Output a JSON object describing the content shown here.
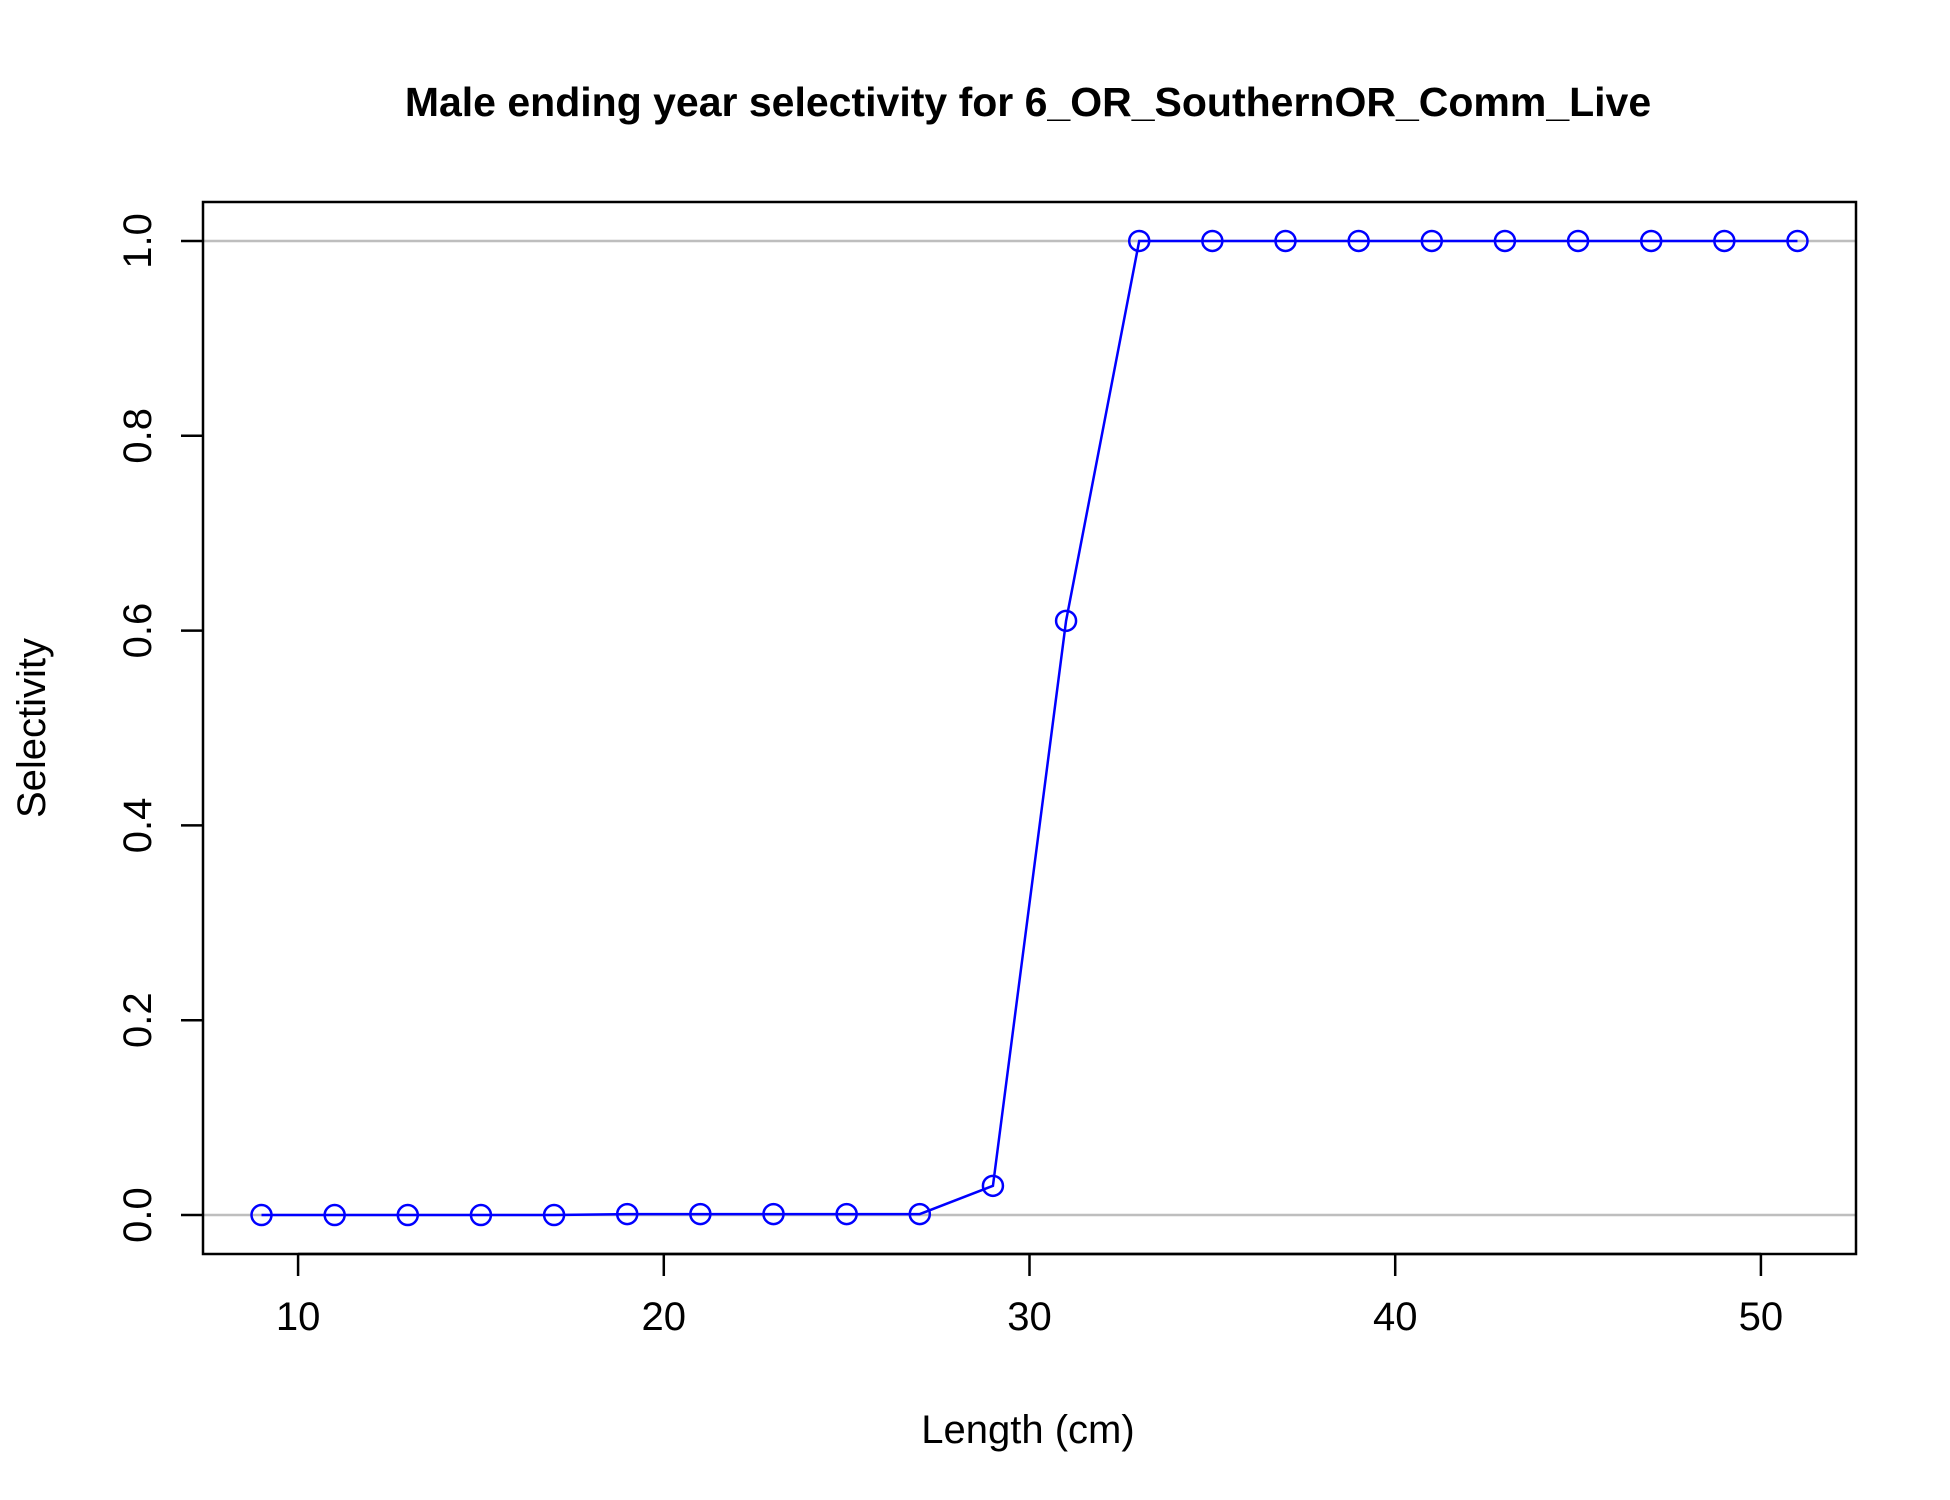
{
  "chart_data": {
    "type": "line",
    "title": "Male ending year selectivity for 6_OR_SouthernOR_Comm_Live",
    "xlabel": "Length (cm)",
    "ylabel": "Selectivity",
    "xlim": [
      7.4,
      52.6
    ],
    "ylim": [
      -0.04,
      1.04
    ],
    "x_ticks": [
      10,
      20,
      30,
      40,
      50
    ],
    "y_ticks": [
      0.0,
      0.2,
      0.4,
      0.6,
      0.8,
      1.0
    ],
    "x_tick_labels": [
      "10",
      "20",
      "30",
      "40",
      "50"
    ],
    "y_tick_labels": [
      "0.0",
      "0.2",
      "0.4",
      "0.6",
      "0.8",
      "1.0"
    ],
    "reference_lines_y": [
      0,
      1
    ],
    "reference_line_color": "#bebebe",
    "series_color": "#0000ff",
    "marker": "open-circle",
    "grid": false,
    "legend": "none",
    "series": [
      {
        "x": [
          9,
          11,
          13,
          15,
          17,
          19,
          21,
          23,
          25,
          27,
          29,
          31,
          33,
          35,
          37,
          39,
          41,
          43,
          45,
          47,
          49,
          51
        ],
        "values": [
          0.0,
          0.0,
          0.0,
          0.0,
          0.0,
          0.001,
          0.001,
          0.001,
          0.001,
          0.001,
          0.03,
          0.61,
          1.0,
          1.0,
          1.0,
          1.0,
          1.0,
          1.0,
          1.0,
          1.0,
          1.0,
          1.0
        ]
      }
    ]
  }
}
